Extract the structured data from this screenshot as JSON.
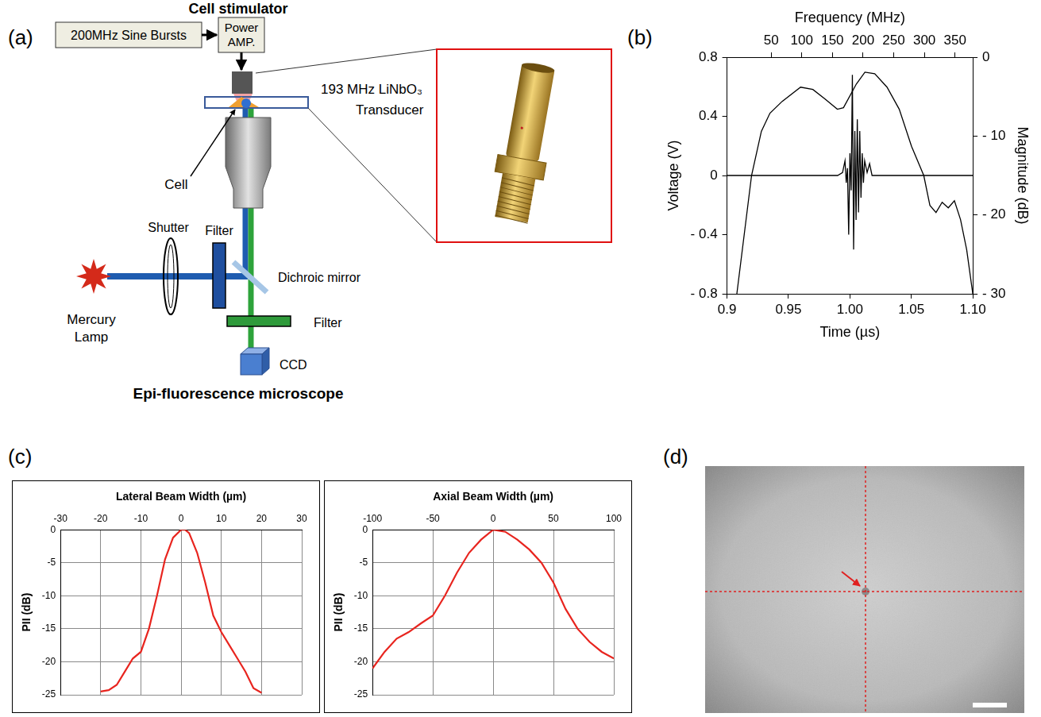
{
  "panel_labels": {
    "a": "(a)",
    "b": "(b)",
    "c": "(c)",
    "d": "(d)"
  },
  "diagram": {
    "title": "Cell stimulator",
    "source": "200MHz Sine Bursts",
    "amplifier": "Power AMP.",
    "transducer": [
      "193 MHz LiNbO₃",
      "Transducer"
    ],
    "cell": "Cell",
    "shutter": "Shutter",
    "excitation_filter": "Filter",
    "dichroic": "Dichroic mirror",
    "lamp": [
      "Mercury",
      "Lamp"
    ],
    "emission_filter": "Filter",
    "camera": "CCD",
    "footer": "Epi-fluorescence microscope"
  },
  "chart_data": [
    {
      "type": "line",
      "x_label": "Time (µs)",
      "y_label": "Voltage (V)",
      "x2_label": "Frequency (MHz)",
      "y2_label": "Magnitude (dB)",
      "xlim": [
        0.9,
        1.1
      ],
      "xticks": [
        0.9,
        0.95,
        {
          "value": 1,
          "label": "1.00"
        },
        1.05,
        {
          "value": 1.1,
          "label": "1.10"
        }
      ],
      "ylim": [
        -0.8,
        0.8
      ],
      "yticks": [
        {
          "value": -0.8,
          "label": "- 0.8"
        },
        {
          "value": -0.4,
          "label": "- 0.4"
        },
        0,
        0.4,
        0.8
      ],
      "x2lim": [
        -22,
        379
      ],
      "x2ticks": [
        50,
        100,
        150,
        200,
        250,
        300,
        350
      ],
      "y2lim": [
        -30,
        0
      ],
      "y2ticks": [
        {
          "value": -30,
          "label": "- 30"
        },
        {
          "value": -20,
          "label": "- 20"
        },
        {
          "value": -10,
          "label": "- 10"
        },
        0
      ],
      "grid": false,
      "series": [
        {
          "color": "#000000",
          "x": [
            0.9,
            0.95,
            0.99,
            0.994,
            0.996,
            0.997,
            0.998,
            0.999,
            1.0,
            1.001,
            1.002,
            1.003,
            1.004,
            1.005,
            1.006,
            1.007,
            1.008,
            1.009,
            1.01,
            1.011,
            1.012,
            1.014,
            1.016,
            1.018,
            1.02,
            1.05,
            1.1
          ],
          "values": [
            0,
            0,
            0,
            0.02,
            0.1,
            -0.05,
            0.05,
            -0.4,
            0.15,
            -0.1,
            0.68,
            -0.5,
            0.3,
            -0.3,
            0.38,
            -0.25,
            0.3,
            -0.15,
            0.15,
            -0.05,
            0.1,
            0.02,
            0.08,
            0,
            0,
            0,
            0
          ]
        },
        {
          "color": "#000000",
          "axis": "y2",
          "x": [
            -6,
            6,
            18,
            34,
            48,
            68,
            98,
            118,
            138,
            158,
            168,
            189,
            203,
            219,
            239,
            259,
            279,
            299,
            309,
            319,
            329,
            339,
            349,
            359,
            369,
            379
          ],
          "values": [
            -30,
            -22.5,
            -15,
            -9.4,
            -7.1,
            -5.6,
            -3.8,
            -4.1,
            -5.3,
            -6.6,
            -6.4,
            -3.4,
            -1.9,
            -2.1,
            -3.8,
            -6.6,
            -11.3,
            -15,
            -18.8,
            -19.7,
            -18.4,
            -19.1,
            -18.2,
            -20.6,
            -24.4,
            -30
          ]
        }
      ]
    },
    {
      "type": "line",
      "x_label": "Lateral Beam Width (µm)",
      "y_label": "PII (dB)",
      "xlim": [
        -30,
        30
      ],
      "xticks": [
        -30,
        -20,
        -10,
        0,
        10,
        20,
        30
      ],
      "ylim": [
        -25,
        0
      ],
      "yticks": [
        -25,
        -20,
        -15,
        -10,
        -5,
        0
      ],
      "grid": true,
      "color": "#e8251f",
      "x": [
        -20,
        -18,
        -16,
        -14,
        -12,
        -10,
        -8,
        -6,
        -4,
        -2,
        0,
        1,
        2,
        4,
        6,
        8,
        10,
        12,
        14,
        16,
        18,
        20
      ],
      "values": [
        -24.5,
        -24.3,
        -23.5,
        -21.5,
        -19.5,
        -18.5,
        -15,
        -10,
        -4.5,
        -1.2,
        0,
        0,
        -0.5,
        -3.5,
        -8,
        -13,
        -15.5,
        -17.5,
        -19.5,
        -21.5,
        -24,
        -24.7
      ]
    },
    {
      "type": "line",
      "x_label": "Axial Beam Width (µm)",
      "y_label": "PII (dB)",
      "xlim": [
        -100,
        100
      ],
      "xticks": [
        -100,
        -50,
        0,
        50,
        100
      ],
      "ylim": [
        -25,
        0
      ],
      "yticks": [
        -25,
        -20,
        -15,
        -10,
        -5,
        0
      ],
      "grid": true,
      "color": "#e8251f",
      "x": [
        -100,
        -90,
        -80,
        -70,
        -60,
        -50,
        -40,
        -30,
        -20,
        -10,
        0,
        10,
        20,
        30,
        40,
        50,
        60,
        70,
        80,
        90,
        100
      ],
      "values": [
        -21,
        -18.5,
        -16.5,
        -15.5,
        -14.2,
        -13,
        -10,
        -6.5,
        -3.5,
        -1.5,
        0,
        -0.3,
        -1.5,
        -3,
        -5,
        -8,
        -12,
        -15,
        -17,
        -18.5,
        -19.5
      ]
    }
  ]
}
